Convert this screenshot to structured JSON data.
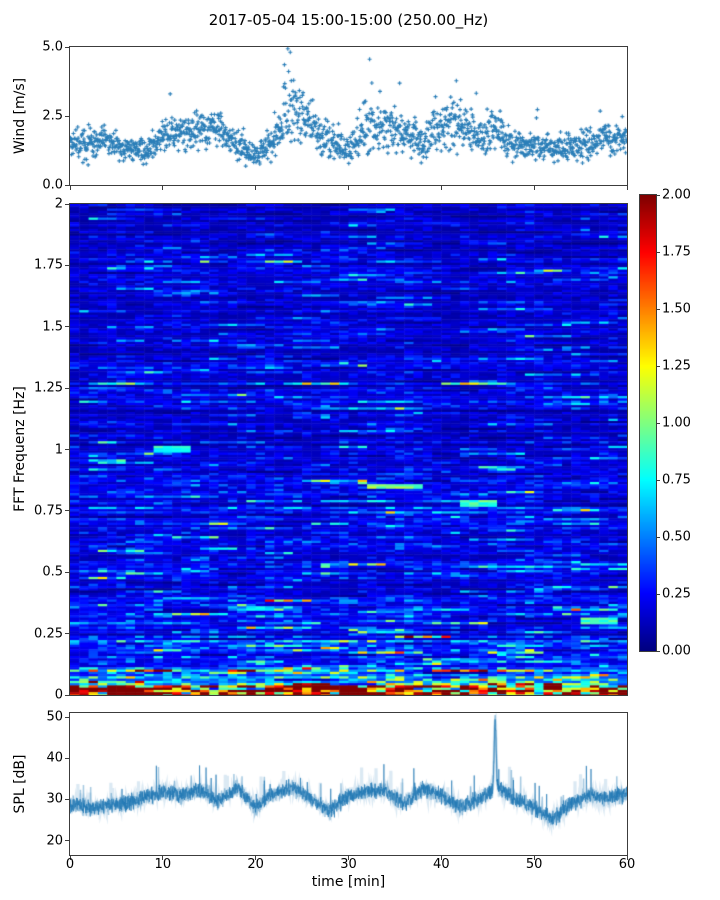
{
  "title": "2017-05-04 15:00-15:00 (250.00_Hz)",
  "colors": {
    "series_blue": "#1f77b4",
    "axis": "#3c3c3c",
    "background": "#ffffff"
  },
  "chart_data": [
    {
      "id": "wind",
      "type": "scatter",
      "marker": "plus",
      "color": "#1f77b4",
      "ylabel": "Wind [m/s]",
      "xlim": [
        0,
        60
      ],
      "ylim": [
        0,
        5
      ],
      "ytick_values": [
        0.0,
        2.5,
        5.0
      ],
      "ytick_labels": [
        "0.0",
        "2.5",
        "5.0"
      ],
      "xtick_values": [
        0,
        10,
        20,
        30,
        40,
        50,
        60
      ],
      "n_points": 1650,
      "envelope": {
        "t_start": 0,
        "t_step": 2,
        "mean": [
          1.5,
          1.4,
          1.6,
          1.3,
          1.2,
          1.8,
          1.9,
          2.0,
          2.1,
          1.4,
          1.0,
          1.6,
          2.9,
          2.1,
          1.6,
          1.2,
          2.1,
          2.0,
          1.9,
          1.4,
          2.2,
          2.3,
          1.8,
          1.9,
          1.5,
          1.4,
          1.3,
          1.4,
          1.5,
          1.7,
          1.8
        ],
        "spread": [
          0.7,
          0.8,
          0.7,
          0.6,
          0.6,
          0.8,
          0.9,
          0.9,
          1.0,
          0.8,
          0.6,
          0.9,
          1.7,
          1.1,
          0.9,
          0.7,
          1.4,
          1.1,
          1.0,
          0.9,
          1.3,
          1.4,
          1.0,
          1.2,
          0.8,
          0.7,
          0.7,
          0.8,
          0.8,
          0.9,
          0.9
        ]
      },
      "peak": {
        "t": 23.5,
        "value": 5.0
      }
    },
    {
      "id": "spectrogram",
      "type": "heatmap",
      "colormap": "jet",
      "clim": [
        0,
        2
      ],
      "ylabel": "FFT Frequenz [Hz]",
      "xlim": [
        0,
        60
      ],
      "ylim": [
        0,
        2
      ],
      "ytick_values": [
        0,
        0.25,
        0.5,
        0.75,
        1,
        1.25,
        1.5,
        1.75,
        2
      ],
      "ytick_labels": [
        "0",
        "0.25",
        "0.5",
        "0.75",
        "1",
        "1.25",
        "1.5",
        "1.75",
        "2"
      ],
      "time_bins": 60,
      "freq_profile": {
        "f": [
          0,
          0.02,
          0.04,
          0.07,
          0.1,
          0.15,
          0.25,
          0.4,
          0.7,
          1.0,
          1.5,
          2.0
        ],
        "value": [
          1.9,
          1.55,
          1.15,
          0.8,
          0.6,
          0.45,
          0.35,
          0.3,
          0.27,
          0.26,
          0.23,
          0.2
        ]
      },
      "bright_patches": [
        {
          "t": 35,
          "f": 0.85,
          "dur": 5,
          "value": 1.0
        },
        {
          "t": 11,
          "f": 1.0,
          "dur": 3,
          "value": 0.8
        },
        {
          "t": 44,
          "f": 0.78,
          "dur": 3,
          "value": 0.85
        },
        {
          "t": 57,
          "f": 0.3,
          "dur": 3,
          "value": 0.9
        }
      ],
      "colorbar": {
        "tick_values": [
          0,
          0.25,
          0.5,
          0.75,
          1,
          1.25,
          1.5,
          1.75,
          2
        ],
        "tick_labels": [
          "0.00",
          "0.25",
          "0.50",
          "0.75",
          "1.00",
          "1.25",
          "1.50",
          "1.75",
          "2.00"
        ]
      }
    },
    {
      "id": "spl",
      "type": "line",
      "color": "#1f77b4",
      "ylabel": "SPL [dB]",
      "xlabel": "time [min]",
      "xlim": [
        0,
        60
      ],
      "ylim": [
        16.5,
        51
      ],
      "ytick_values": [
        20,
        30,
        40,
        50
      ],
      "ytick_labels": [
        "20",
        "30",
        "40",
        "50"
      ],
      "xtick_values": [
        0,
        10,
        20,
        30,
        40,
        50,
        60
      ],
      "xtick_labels": [
        "0",
        "10",
        "20",
        "30",
        "40",
        "50",
        "60"
      ],
      "envelope": {
        "t_start": 0,
        "t_step": 2,
        "mean": [
          29,
          28,
          28.5,
          29,
          30.5,
          32,
          31,
          32.5,
          29.5,
          33,
          28,
          31.5,
          33,
          30,
          27,
          31,
          32,
          32,
          29,
          32.5,
          31,
          28,
          30,
          33,
          30,
          28,
          25,
          29,
          31,
          30,
          31.5
        ]
      },
      "noise_halfwidth": 2.6,
      "spike": {
        "t": 45.8,
        "value": 49
      }
    }
  ]
}
